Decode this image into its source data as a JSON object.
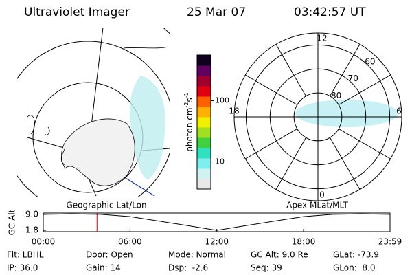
{
  "header": {
    "instrument": "Ultraviolet Imager",
    "date": "25 Mar 07",
    "time": "03:42:57 UT"
  },
  "maps": {
    "left_label": "Geographic Lat/Lon",
    "right_label": "Apex MLat/MLT"
  },
  "chart_data": [
    {
      "type": "polar",
      "mlt_ticks": [
        12,
        18,
        0,
        6
      ],
      "lat_ticks": [
        60,
        70,
        80
      ],
      "rlim": [
        90,
        55
      ]
    },
    {
      "type": "colorbar",
      "label_parts": [
        "photon cm",
        "-2",
        "s",
        "-1"
      ],
      "log": true,
      "lim": [
        3.6,
        560
      ],
      "ticks": [
        10,
        100
      ]
    },
    {
      "type": "line",
      "y_label": "GC Alt",
      "x": [
        0,
        2,
        4,
        6,
        8,
        10,
        12,
        14,
        16,
        18,
        20,
        22,
        23.98
      ],
      "values": [
        9.0,
        9.2,
        9.0,
        8.0,
        6.0,
        3.9,
        1.8,
        3.9,
        6.0,
        8.0,
        9.0,
        9.2,
        9.0
      ],
      "color": "#000000",
      "xlim": [
        0,
        23.98
      ],
      "xticks": [
        {
          "value": 0,
          "label": "00:00"
        },
        {
          "value": 6,
          "label": "06:00"
        },
        {
          "value": 12,
          "label": "12:00"
        },
        {
          "value": 18,
          "label": "18:00"
        },
        {
          "value": 23.98,
          "label": "23:59"
        }
      ],
      "ylim": [
        1.2,
        9.6
      ],
      "yticks": [
        {
          "value": 9.0,
          "label": "9.0"
        },
        {
          "value": 1.8,
          "label": "1.8"
        }
      ],
      "marker_x": 3.716,
      "marker_color": "#cc0000"
    }
  ],
  "info": [
    [
      "Flt: LBHL",
      "Door: Open",
      "Mode: Normal",
      "GC Alt: 9.0 Re",
      "GLat: -73.9"
    ],
    [
      "IP: 36.0",
      "Gain: 14",
      "Dsp:  -2.6",
      "Seq: 39",
      "GLon:  8.0"
    ]
  ]
}
